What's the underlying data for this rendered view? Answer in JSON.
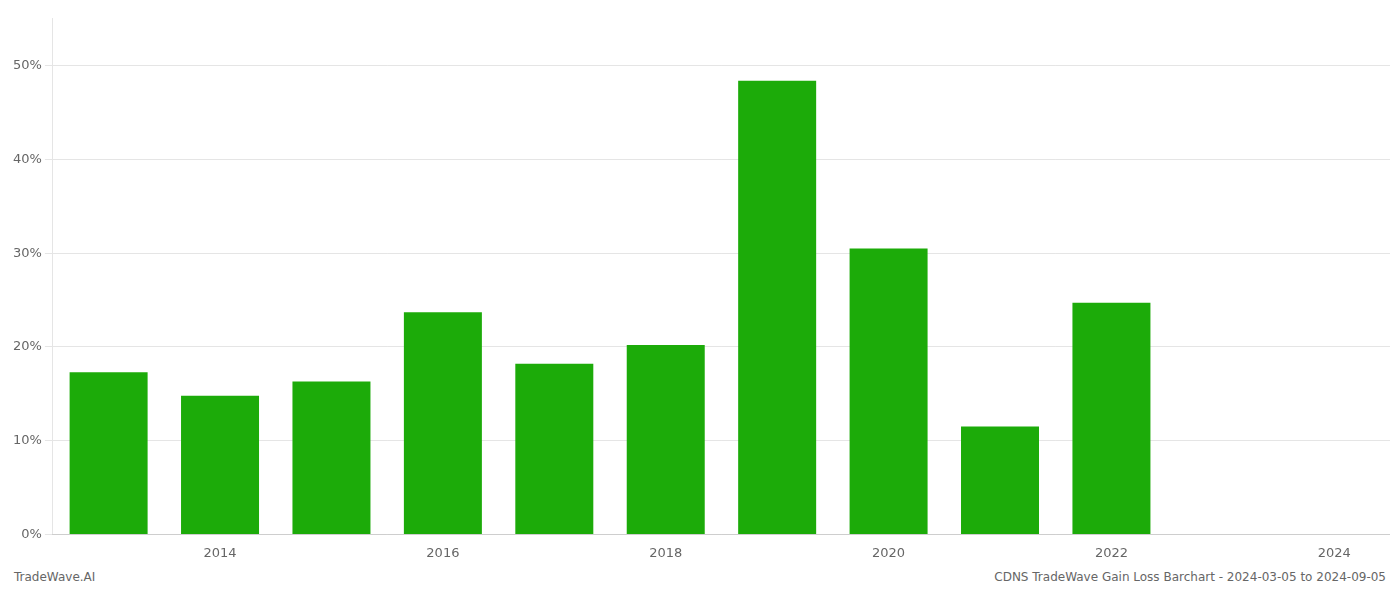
{
  "chart_data": {
    "type": "bar",
    "x": [
      2013,
      2014,
      2015,
      2016,
      2017,
      2018,
      2019,
      2020,
      2021,
      2022,
      2023
    ],
    "values": [
      0.173,
      0.148,
      0.163,
      0.237,
      0.182,
      0.202,
      0.484,
      0.305,
      0.115,
      0.247,
      0.0
    ],
    "color": "#1cab09",
    "xlim": [
      2012.5,
      2024.5
    ],
    "xticks": [
      2014,
      2016,
      2018,
      2020,
      2022,
      2024
    ],
    "ylim": [
      0,
      0.55
    ],
    "yticks": [
      {
        "value": 0.0,
        "label": "0%"
      },
      {
        "value": 0.1,
        "label": "10%"
      },
      {
        "value": 0.2,
        "label": "20%"
      },
      {
        "value": 0.3,
        "label": "30%"
      },
      {
        "value": 0.4,
        "label": "40%"
      },
      {
        "value": 0.5,
        "label": "50%"
      }
    ],
    "grid": true,
    "annotations": [
      "TradeWave.AI",
      "CDNS TradeWave Gain Loss Barchart - 2024-03-05 to 2024-09-05"
    ]
  }
}
